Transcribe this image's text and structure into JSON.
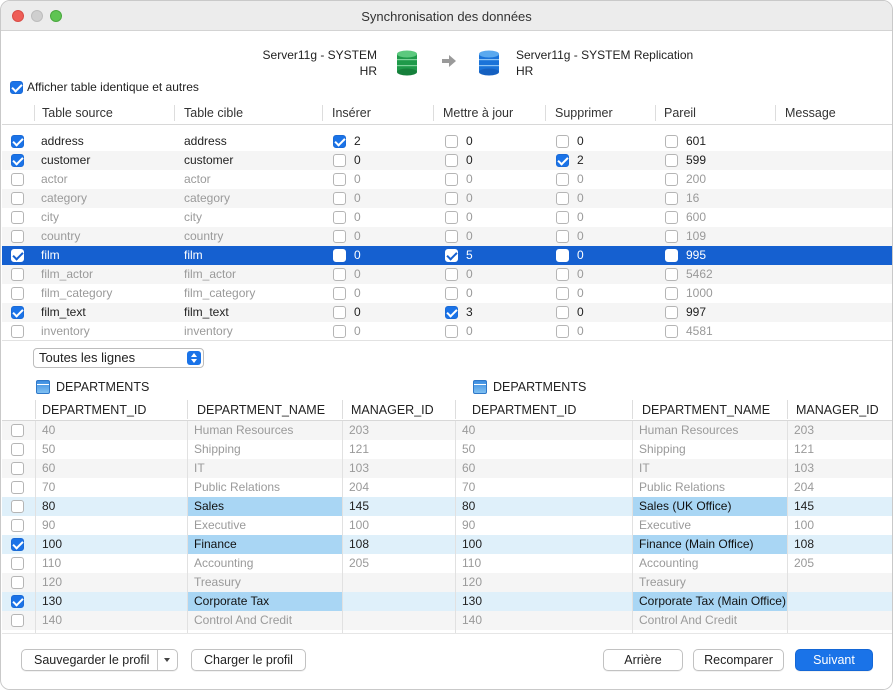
{
  "window": {
    "title": "Synchronisation des données"
  },
  "connections": {
    "source": {
      "name": "Server11g - SYSTEM",
      "schema": "HR"
    },
    "target": {
      "name": "Server11g - SYSTEM Replication",
      "schema": "HR"
    }
  },
  "show_identical": {
    "label": "Afficher table identique et autres",
    "checked": true
  },
  "table_grid": {
    "headers": [
      "Table source",
      "Table cible",
      "Insérer",
      "Mettre à jour",
      "Supprimer",
      "Pareil",
      "Message"
    ],
    "rows": [
      {
        "checked": true,
        "source": "address",
        "target": "address",
        "insert_checked": true,
        "insert": "2",
        "update_checked": false,
        "update": "0",
        "delete_checked": false,
        "delete": "0",
        "same_checked": false,
        "same": "601",
        "dim": false
      },
      {
        "checked": true,
        "source": "customer",
        "target": "customer",
        "insert_checked": false,
        "insert": "0",
        "update_checked": false,
        "update": "0",
        "delete_checked": true,
        "delete": "2",
        "same_checked": false,
        "same": "599",
        "dim": false
      },
      {
        "checked": false,
        "source": "actor",
        "target": "actor",
        "insert_checked": false,
        "insert": "0",
        "update_checked": false,
        "update": "0",
        "delete_checked": false,
        "delete": "0",
        "same_checked": false,
        "same": "200",
        "dim": true
      },
      {
        "checked": false,
        "source": "category",
        "target": "category",
        "insert_checked": false,
        "insert": "0",
        "update_checked": false,
        "update": "0",
        "delete_checked": false,
        "delete": "0",
        "same_checked": false,
        "same": "16",
        "dim": true
      },
      {
        "checked": false,
        "source": "city",
        "target": "city",
        "insert_checked": false,
        "insert": "0",
        "update_checked": false,
        "update": "0",
        "delete_checked": false,
        "delete": "0",
        "same_checked": false,
        "same": "600",
        "dim": true
      },
      {
        "checked": false,
        "source": "country",
        "target": "country",
        "insert_checked": false,
        "insert": "0",
        "update_checked": false,
        "update": "0",
        "delete_checked": false,
        "delete": "0",
        "same_checked": false,
        "same": "109",
        "dim": true
      },
      {
        "checked": true,
        "source": "film",
        "target": "film",
        "insert_checked": false,
        "insert": "0",
        "update_checked": true,
        "update": "5",
        "delete_checked": false,
        "delete": "0",
        "same_checked": false,
        "same": "995",
        "dim": false,
        "selected": true
      },
      {
        "checked": false,
        "source": "film_actor",
        "target": "film_actor",
        "insert_checked": false,
        "insert": "0",
        "update_checked": false,
        "update": "0",
        "delete_checked": false,
        "delete": "0",
        "same_checked": false,
        "same": "5462",
        "dim": true
      },
      {
        "checked": false,
        "source": "film_category",
        "target": "film_category",
        "insert_checked": false,
        "insert": "0",
        "update_checked": false,
        "update": "0",
        "delete_checked": false,
        "delete": "0",
        "same_checked": false,
        "same": "1000",
        "dim": true
      },
      {
        "checked": true,
        "source": "film_text",
        "target": "film_text",
        "insert_checked": false,
        "insert": "0",
        "update_checked": true,
        "update": "3",
        "delete_checked": false,
        "delete": "0",
        "same_checked": false,
        "same": "997",
        "dim": false
      },
      {
        "checked": false,
        "source": "inventory",
        "target": "inventory",
        "insert_checked": false,
        "insert": "0",
        "update_checked": false,
        "update": "0",
        "delete_checked": false,
        "delete": "0",
        "same_checked": false,
        "same": "4581",
        "dim": true
      }
    ]
  },
  "filter": {
    "value": "Toutes les lignes"
  },
  "detail": {
    "source_table": "DEPARTMENTS",
    "target_table": "DEPARTMENTS",
    "headers": [
      "DEPARTMENT_ID",
      "DEPARTMENT_NAME",
      "MANAGER_ID"
    ],
    "rows": [
      {
        "checked": false,
        "diff": false,
        "s_id": "40",
        "s_name": "Human Resources",
        "s_mgr": "203",
        "t_id": "40",
        "t_name": "Human Resources",
        "t_mgr": "203"
      },
      {
        "checked": false,
        "diff": false,
        "s_id": "50",
        "s_name": "Shipping",
        "s_mgr": "121",
        "t_id": "50",
        "t_name": "Shipping",
        "t_mgr": "121"
      },
      {
        "checked": false,
        "diff": false,
        "s_id": "60",
        "s_name": "IT",
        "s_mgr": "103",
        "t_id": "60",
        "t_name": "IT",
        "t_mgr": "103"
      },
      {
        "checked": false,
        "diff": false,
        "s_id": "70",
        "s_name": "Public Relations",
        "s_mgr": "204",
        "t_id": "70",
        "t_name": "Public Relations",
        "t_mgr": "204"
      },
      {
        "checked": false,
        "diff": true,
        "s_id": "80",
        "s_name": "Sales",
        "s_mgr": "145",
        "t_id": "80",
        "t_name": "Sales (UK Office)",
        "t_mgr": "145"
      },
      {
        "checked": false,
        "diff": false,
        "s_id": "90",
        "s_name": "Executive",
        "s_mgr": "100",
        "t_id": "90",
        "t_name": "Executive",
        "t_mgr": "100"
      },
      {
        "checked": true,
        "diff": true,
        "s_id": "100",
        "s_name": "Finance",
        "s_mgr": "108",
        "t_id": "100",
        "t_name": "Finance (Main Office)",
        "t_mgr": "108"
      },
      {
        "checked": false,
        "diff": false,
        "s_id": "110",
        "s_name": "Accounting",
        "s_mgr": "205",
        "t_id": "110",
        "t_name": "Accounting",
        "t_mgr": "205"
      },
      {
        "checked": false,
        "diff": false,
        "s_id": "120",
        "s_name": "Treasury",
        "s_mgr": "",
        "t_id": "120",
        "t_name": "Treasury",
        "t_mgr": ""
      },
      {
        "checked": true,
        "diff": true,
        "s_id": "130",
        "s_name": "Corporate Tax",
        "s_mgr": "",
        "t_id": "130",
        "t_name": "Corporate Tax (Main Office)",
        "t_mgr": ""
      },
      {
        "checked": false,
        "diff": false,
        "s_id": "140",
        "s_name": "Control And Credit",
        "s_mgr": "",
        "t_id": "140",
        "t_name": "Control And Credit",
        "t_mgr": ""
      }
    ]
  },
  "buttons": {
    "save_profile": "Sauvegarder le profil",
    "load_profile": "Charger le profil",
    "back": "Arrière",
    "recompare": "Recomparer",
    "next": "Suivant"
  },
  "colors": {
    "accent": "#1a73e8",
    "selection": "#1560d0",
    "diff_row": "#dff0fa",
    "diff_cell": "#a9d6f4"
  },
  "icons": [
    "source-database-icon",
    "target-database-icon",
    "arrow-right-icon",
    "table-icon"
  ]
}
